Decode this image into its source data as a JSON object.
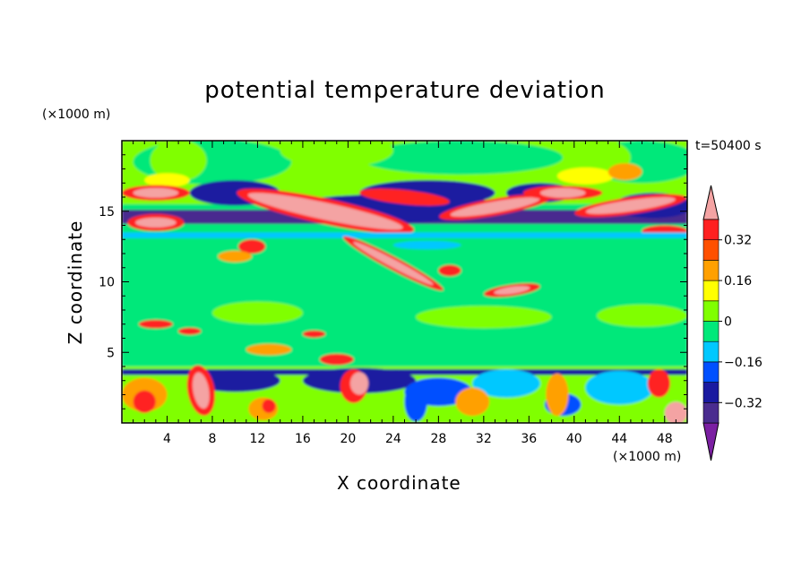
{
  "chart_data": {
    "type": "heatmap",
    "title": "potential temperature deviation",
    "xlabel": "X coordinate",
    "ylabel": "Z coordinate",
    "x_unit": "(×1000 m)",
    "y_unit": "(×1000 m)",
    "time_label": "t=50400 s",
    "xlim": [
      0,
      50
    ],
    "ylim": [
      0,
      20
    ],
    "x_ticks": [
      4,
      8,
      12,
      16,
      20,
      24,
      28,
      32,
      36,
      40,
      44,
      48
    ],
    "y_ticks": [
      5,
      10,
      15
    ],
    "colorbar": {
      "levels": [
        {
          "color": "#7b1fa2"
        },
        {
          "color": "#4a2c8f"
        },
        {
          "color": "#1a1aa0"
        },
        {
          "color": "#0050ff"
        },
        {
          "color": "#00c8ff"
        },
        {
          "color": "#00e87a"
        },
        {
          "color": "#80ff00"
        },
        {
          "color": "#ffff00"
        },
        {
          "color": "#ffa000"
        },
        {
          "color": "#ff5000"
        },
        {
          "color": "#ff2020"
        },
        {
          "color": "#f4a3a3"
        }
      ],
      "tick_labels": [
        {
          "text": "0.32",
          "value": 0.32
        },
        {
          "text": "0.16",
          "value": 0.16
        },
        {
          "text": "0",
          "value": 0
        },
        {
          "text": "−0.16",
          "value": -0.16
        },
        {
          "text": "−0.32",
          "value": -0.32
        }
      ],
      "range": [
        -0.4,
        0.4
      ]
    }
  }
}
